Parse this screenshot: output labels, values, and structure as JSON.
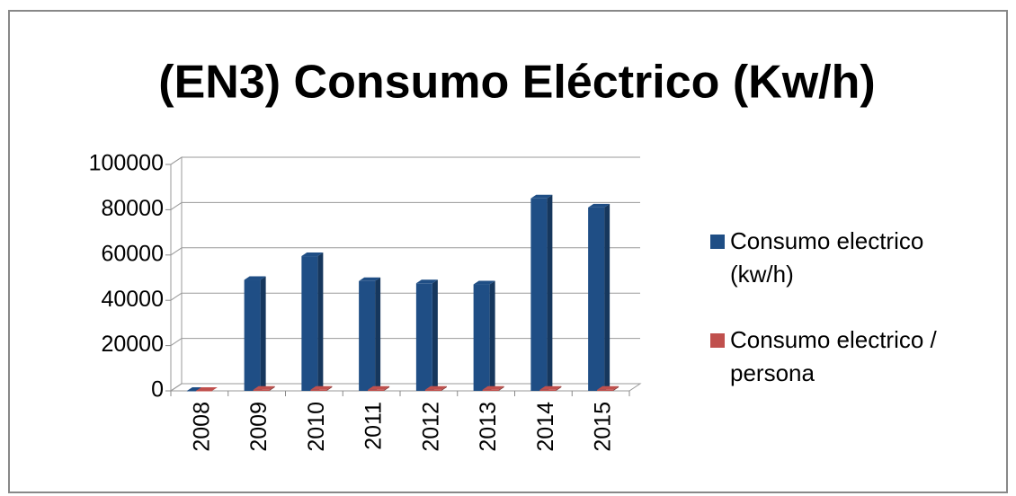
{
  "chart_data": {
    "type": "bar3d",
    "title": "(EN3) Consumo Eléctrico (Kw/h)",
    "categories": [
      "2008",
      "2009",
      "2010",
      "2011",
      "2012",
      "2013",
      "2014",
      "2015"
    ],
    "series": [
      {
        "name": "Consumo electrico (kw/h)",
        "color": "#1f4e85",
        "values": [
          0,
          49000,
          59500,
          48500,
          47500,
          47000,
          85000,
          81000
        ]
      },
      {
        "name": "Consumo electrico / persona",
        "color": "#c0504d",
        "values": [
          0,
          500,
          500,
          500,
          500,
          500,
          500,
          500
        ]
      }
    ],
    "ylim": [
      0,
      100000
    ],
    "yticks": [
      0,
      20000,
      40000,
      60000,
      80000,
      100000
    ],
    "grid": true,
    "legend": "right"
  }
}
